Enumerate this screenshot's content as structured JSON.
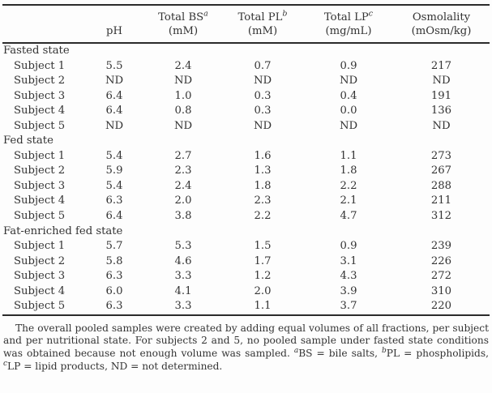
{
  "page": {
    "background_color": "#fdfdfd",
    "text_color": "#333333",
    "rule_color": "#2b2b2b"
  },
  "table": {
    "columns": [
      {
        "title": "",
        "sup": "",
        "unit": ""
      },
      {
        "title": "pH",
        "sup": "",
        "unit": ""
      },
      {
        "title": "Total BS",
        "sup": "a",
        "unit": "(mM)"
      },
      {
        "title": "Total PL",
        "sup": "b",
        "unit": "(mM)"
      },
      {
        "title": "Total LP",
        "sup": "c",
        "unit": "(mg/mL)"
      },
      {
        "title": "Osmolality",
        "sup": "",
        "unit": "(mOsm/kg)"
      }
    ],
    "sections": [
      {
        "label": "Fasted state",
        "rows": [
          {
            "label": "Subject 1",
            "values": [
              "5.5",
              "2.4",
              "0.7",
              "0.9",
              "217"
            ]
          },
          {
            "label": "Subject 2",
            "values": [
              "ND",
              "ND",
              "ND",
              "ND",
              "ND"
            ]
          },
          {
            "label": "Subject 3",
            "values": [
              "6.4",
              "1.0",
              "0.3",
              "0.4",
              "191"
            ]
          },
          {
            "label": "Subject 4",
            "values": [
              "6.4",
              "0.8",
              "0.3",
              "0.0",
              "136"
            ]
          },
          {
            "label": "Subject 5",
            "values": [
              "ND",
              "ND",
              "ND",
              "ND",
              "ND"
            ]
          }
        ]
      },
      {
        "label": "Fed state",
        "rows": [
          {
            "label": "Subject 1",
            "values": [
              "5.4",
              "2.7",
              "1.6",
              "1.1",
              "273"
            ]
          },
          {
            "label": "Subject 2",
            "values": [
              "5.9",
              "2.3",
              "1.3",
              "1.8",
              "267"
            ]
          },
          {
            "label": "Subject 3",
            "values": [
              "5.4",
              "2.4",
              "1.8",
              "2.2",
              "288"
            ]
          },
          {
            "label": "Subject 4",
            "values": [
              "6.3",
              "2.0",
              "2.3",
              "2.1",
              "211"
            ]
          },
          {
            "label": "Subject 5",
            "values": [
              "6.4",
              "3.8",
              "2.2",
              "4.7",
              "312"
            ]
          }
        ]
      },
      {
        "label": "Fat-enriched fed state",
        "rows": [
          {
            "label": "Subject 1",
            "values": [
              "5.7",
              "5.3",
              "1.5",
              "0.9",
              "239"
            ]
          },
          {
            "label": "Subject 2",
            "values": [
              "5.8",
              "4.6",
              "1.7",
              "3.1",
              "226"
            ]
          },
          {
            "label": "Subject 3",
            "values": [
              "6.3",
              "3.3",
              "1.2",
              "4.3",
              "272"
            ]
          },
          {
            "label": "Subject 4",
            "values": [
              "6.0",
              "4.1",
              "2.0",
              "3.9",
              "310"
            ]
          },
          {
            "label": "Subject 5",
            "values": [
              "6.3",
              "3.3",
              "1.1",
              "3.7",
              "220"
            ]
          }
        ]
      }
    ]
  },
  "footnote": {
    "segments": [
      {
        "text": "The overall pooled samples were created by adding equal volumes of all fractions, per subject and per nutritional state. For subjects 2 and 5, no pooled sample under fasted state conditions was obtained because not enough volume was sampled. "
      },
      {
        "sup": "a"
      },
      {
        "text": "BS = bile salts, "
      },
      {
        "sup": "b"
      },
      {
        "text": "PL = phospholipids, "
      },
      {
        "sup": "c"
      },
      {
        "text": "LP = lipid products, ND = not determined."
      }
    ]
  }
}
